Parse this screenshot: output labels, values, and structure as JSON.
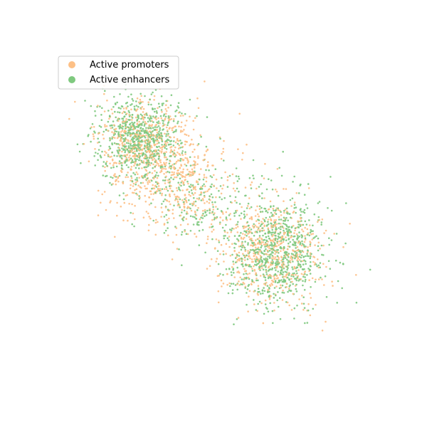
{
  "chart_data": {
    "type": "scatter",
    "title": "",
    "xlabel": "",
    "ylabel": "",
    "axes_visible": false,
    "grid": false,
    "legend_position": "upper-left",
    "series": [
      {
        "name": "Active promoters",
        "color": "#fdc086",
        "clusters": [
          {
            "center": [
              -4.0,
              3.8
            ],
            "spread": [
              1.3,
              1.3
            ],
            "weight": 0.36
          },
          {
            "center": [
              -2.2,
              1.5
            ],
            "spread": [
              1.5,
              1.4
            ],
            "weight": 0.26
          },
          {
            "center": [
              2.8,
              -2.0
            ],
            "spread": [
              1.4,
              1.6
            ],
            "weight": 0.38
          }
        ]
      },
      {
        "name": "Active enhancers",
        "color": "#7fc97f",
        "clusters": [
          {
            "center": [
              -4.3,
              4.2
            ],
            "spread": [
              1.1,
              1.2
            ],
            "weight": 0.42
          },
          {
            "center": [
              -1.0,
              0.8
            ],
            "spread": [
              1.6,
              1.2
            ],
            "weight": 0.12
          },
          {
            "center": [
              3.1,
              -2.2
            ],
            "spread": [
              1.3,
              1.5
            ],
            "weight": 0.46
          }
        ]
      }
    ],
    "xlim": [
      -9,
      9
    ],
    "ylim": [
      -9,
      9
    ]
  }
}
